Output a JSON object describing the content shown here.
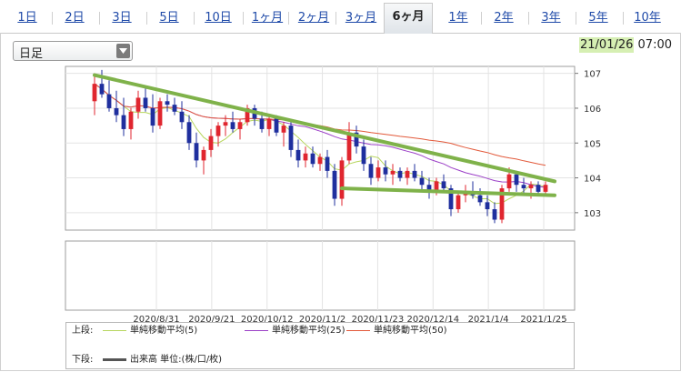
{
  "tabs": [
    {
      "label": "1日"
    },
    {
      "label": "2日"
    },
    {
      "label": "3日"
    },
    {
      "label": "5日"
    },
    {
      "label": "10日"
    },
    {
      "label": "1ヶ月"
    },
    {
      "label": "2ヶ月"
    },
    {
      "label": "3ヶ月"
    },
    {
      "label": "6ヶ月",
      "active": true
    },
    {
      "label": "1年"
    },
    {
      "label": "2年"
    },
    {
      "label": "3年"
    },
    {
      "label": "5年"
    },
    {
      "label": "10年"
    }
  ],
  "period_select": {
    "value": "日足"
  },
  "timestamp": {
    "date": "21/01/26",
    "time": "07:00"
  },
  "legend": {
    "upper_label": "上段:",
    "lower_label": "下段:",
    "ma5": "単純移動平均(5)",
    "ma25": "単純移動平均(25)",
    "ma50": "単純移動平均(50)",
    "volume": "出来高 単位:(株/口/枚)"
  },
  "colors": {
    "up_candle": "#e0262f",
    "down_candle": "#1f2f9e",
    "ma5": "#b7d65e",
    "ma25": "#9b3fc7",
    "ma50": "#e2593a",
    "trendline": "#7fb24a",
    "tab_link": "#1f4aa8",
    "timestamp_bg": "#d6efb3"
  },
  "chart_data": {
    "type": "candlestick",
    "y_axis": {
      "ticks": [
        103,
        104,
        105,
        106,
        107
      ],
      "range": [
        102.5,
        107.2
      ]
    },
    "x_ticks": [
      "2020/8/31",
      "2020/9/21",
      "2020/10/12",
      "2020/11/2",
      "2020/11/23",
      "2020/12/14",
      "2021/1/4",
      "2021/1/25"
    ],
    "candles": [
      {
        "o": 106.2,
        "h": 106.9,
        "l": 105.8,
        "c": 106.7
      },
      {
        "o": 106.7,
        "h": 107.1,
        "l": 106.3,
        "c": 106.4
      },
      {
        "o": 106.4,
        "h": 106.8,
        "l": 105.9,
        "c": 106.0
      },
      {
        "o": 106.0,
        "h": 106.5,
        "l": 105.6,
        "c": 105.8
      },
      {
        "o": 105.8,
        "h": 106.3,
        "l": 105.2,
        "c": 105.4
      },
      {
        "o": 105.4,
        "h": 106.0,
        "l": 105.1,
        "c": 105.9
      },
      {
        "o": 105.9,
        "h": 106.5,
        "l": 105.7,
        "c": 106.3
      },
      {
        "o": 106.3,
        "h": 106.6,
        "l": 105.9,
        "c": 106.0
      },
      {
        "o": 106.0,
        "h": 106.4,
        "l": 105.3,
        "c": 105.5
      },
      {
        "o": 105.5,
        "h": 106.3,
        "l": 105.4,
        "c": 106.2
      },
      {
        "o": 106.2,
        "h": 106.4,
        "l": 105.9,
        "c": 106.1
      },
      {
        "o": 106.1,
        "h": 106.3,
        "l": 105.8,
        "c": 105.9
      },
      {
        "o": 105.9,
        "h": 106.2,
        "l": 105.4,
        "c": 105.6
      },
      {
        "o": 105.6,
        "h": 105.8,
        "l": 104.8,
        "c": 105.0
      },
      {
        "o": 105.0,
        "h": 105.3,
        "l": 104.3,
        "c": 104.5
      },
      {
        "o": 104.5,
        "h": 104.9,
        "l": 104.1,
        "c": 104.8
      },
      {
        "o": 104.8,
        "h": 105.4,
        "l": 104.6,
        "c": 105.2
      },
      {
        "o": 105.2,
        "h": 105.6,
        "l": 104.9,
        "c": 105.5
      },
      {
        "o": 105.5,
        "h": 105.8,
        "l": 105.2,
        "c": 105.6
      },
      {
        "o": 105.6,
        "h": 105.9,
        "l": 105.3,
        "c": 105.4
      },
      {
        "o": 105.4,
        "h": 105.7,
        "l": 105.1,
        "c": 105.6
      },
      {
        "o": 105.6,
        "h": 106.1,
        "l": 105.5,
        "c": 106.0
      },
      {
        "o": 106.0,
        "h": 106.1,
        "l": 105.5,
        "c": 105.7
      },
      {
        "o": 105.7,
        "h": 105.9,
        "l": 105.3,
        "c": 105.4
      },
      {
        "o": 105.4,
        "h": 105.8,
        "l": 105.2,
        "c": 105.7
      },
      {
        "o": 105.7,
        "h": 105.8,
        "l": 105.2,
        "c": 105.3
      },
      {
        "o": 105.3,
        "h": 105.6,
        "l": 104.9,
        "c": 105.5
      },
      {
        "o": 105.5,
        "h": 105.6,
        "l": 104.6,
        "c": 104.8
      },
      {
        "o": 104.8,
        "h": 105.1,
        "l": 104.3,
        "c": 104.5
      },
      {
        "o": 104.5,
        "h": 104.9,
        "l": 104.3,
        "c": 104.7
      },
      {
        "o": 104.7,
        "h": 104.9,
        "l": 104.3,
        "c": 104.4
      },
      {
        "o": 104.4,
        "h": 104.7,
        "l": 104.2,
        "c": 104.6
      },
      {
        "o": 104.6,
        "h": 104.8,
        "l": 104.0,
        "c": 104.2
      },
      {
        "o": 104.2,
        "h": 104.4,
        "l": 103.2,
        "c": 103.4
      },
      {
        "o": 103.4,
        "h": 104.6,
        "l": 103.2,
        "c": 104.5
      },
      {
        "o": 104.5,
        "h": 105.6,
        "l": 104.4,
        "c": 105.3
      },
      {
        "o": 105.3,
        "h": 105.5,
        "l": 104.7,
        "c": 104.9
      },
      {
        "o": 104.9,
        "h": 105.1,
        "l": 104.2,
        "c": 104.4
      },
      {
        "o": 104.4,
        "h": 104.6,
        "l": 103.8,
        "c": 104.0
      },
      {
        "o": 104.0,
        "h": 104.5,
        "l": 103.9,
        "c": 104.3
      },
      {
        "o": 104.3,
        "h": 104.5,
        "l": 103.9,
        "c": 104.1
      },
      {
        "o": 104.1,
        "h": 104.4,
        "l": 103.8,
        "c": 104.2
      },
      {
        "o": 104.2,
        "h": 104.3,
        "l": 103.9,
        "c": 104.0
      },
      {
        "o": 104.0,
        "h": 104.3,
        "l": 103.8,
        "c": 104.2
      },
      {
        "o": 104.2,
        "h": 104.4,
        "l": 103.9,
        "c": 104.0
      },
      {
        "o": 104.0,
        "h": 104.2,
        "l": 103.6,
        "c": 103.8
      },
      {
        "o": 103.8,
        "h": 104.0,
        "l": 103.4,
        "c": 103.6
      },
      {
        "o": 103.6,
        "h": 104.0,
        "l": 103.5,
        "c": 103.9
      },
      {
        "o": 103.9,
        "h": 104.1,
        "l": 103.6,
        "c": 103.7
      },
      {
        "o": 103.7,
        "h": 103.8,
        "l": 102.9,
        "c": 103.1
      },
      {
        "o": 103.1,
        "h": 103.6,
        "l": 103.0,
        "c": 103.5
      },
      {
        "o": 103.5,
        "h": 103.8,
        "l": 103.3,
        "c": 103.6
      },
      {
        "o": 103.6,
        "h": 103.9,
        "l": 103.4,
        "c": 103.5
      },
      {
        "o": 103.5,
        "h": 103.7,
        "l": 103.2,
        "c": 103.3
      },
      {
        "o": 103.3,
        "h": 103.5,
        "l": 102.9,
        "c": 103.1
      },
      {
        "o": 103.1,
        "h": 103.3,
        "l": 102.7,
        "c": 102.8
      },
      {
        "o": 102.8,
        "h": 103.8,
        "l": 102.7,
        "c": 103.7
      },
      {
        "o": 103.7,
        "h": 104.3,
        "l": 103.6,
        "c": 104.1
      },
      {
        "o": 104.1,
        "h": 104.2,
        "l": 103.6,
        "c": 103.8
      },
      {
        "o": 103.8,
        "h": 104.0,
        "l": 103.5,
        "c": 103.7
      },
      {
        "o": 103.7,
        "h": 103.9,
        "l": 103.4,
        "c": 103.8
      },
      {
        "o": 103.8,
        "h": 103.9,
        "l": 103.5,
        "c": 103.6
      },
      {
        "o": 103.6,
        "h": 103.9,
        "l": 103.5,
        "c": 103.8
      }
    ],
    "trendlines": [
      {
        "x1": 0,
        "y1": 106.95,
        "x2": 62,
        "y2": 103.9
      },
      {
        "x1": 34,
        "y1": 103.7,
        "x2": 62,
        "y2": 103.5
      }
    ]
  }
}
